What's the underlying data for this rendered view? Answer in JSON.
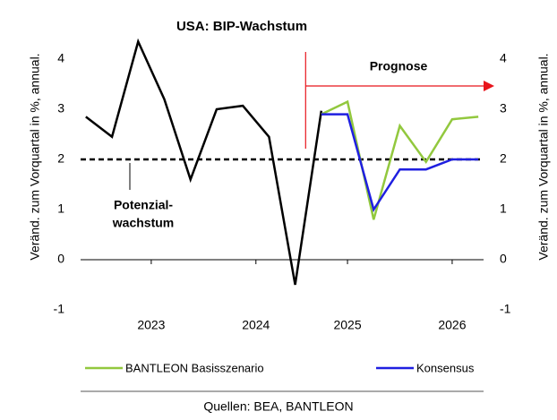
{
  "chart_data": {
    "type": "line",
    "title": "USA: BIP-Wachstum",
    "ylabel": "Veränd. zum Vorquartal in %, annual.",
    "y2label": "Veränd. zum Vorquartal in %, annual.",
    "xlim": [
      2022.7,
      2026.55
    ],
    "xticks": [
      {
        "value": 2023.375,
        "label": "2023"
      },
      {
        "value": 2024.375,
        "label": "2024"
      },
      {
        "value": 2025.25,
        "label": "2025"
      },
      {
        "value": 2026.25,
        "label": "2026"
      }
    ],
    "ylim": [
      -1,
      4.5
    ],
    "yticks": [
      -1,
      0,
      1,
      2,
      3,
      4
    ],
    "y2lim": [
      -1,
      4.5
    ],
    "y2ticks": [
      -1,
      0,
      1,
      2,
      3,
      4
    ],
    "history": {
      "color": "#000000",
      "x": [
        2022.75,
        2023.0,
        2023.25,
        2023.5,
        2023.75,
        2024.0,
        2024.25,
        2024.5,
        2024.75,
        2025.0
      ],
      "values": [
        2.85,
        2.45,
        4.35,
        3.2,
        1.6,
        3.0,
        3.07,
        2.45,
        -0.5,
        2.97
      ]
    },
    "series": [
      {
        "name": "BANTLEON Basisszenario",
        "color": "#92c83e",
        "x": [
          2025.0,
          2025.25,
          2025.5,
          2025.75,
          2026.0,
          2026.25,
          2026.5
        ],
        "values": [
          2.9,
          3.15,
          0.8,
          2.67,
          1.95,
          2.8,
          2.85
        ]
      },
      {
        "name": "Konsensus",
        "color": "#1f1fe0",
        "x": [
          2025.0,
          2025.25,
          2025.5,
          2025.75,
          2026.0,
          2026.25,
          2026.5
        ],
        "values": [
          2.9,
          2.9,
          1.0,
          1.8,
          1.8,
          2.0,
          2.0
        ]
      }
    ],
    "potential": {
      "value": 2,
      "label": [
        "Potenzial-",
        "wachstum"
      ]
    },
    "forecast": {
      "label": "Prognose",
      "color": "#e8141b",
      "x": 2024.85
    },
    "source": "Quellen: BEA, BANTLEON"
  }
}
